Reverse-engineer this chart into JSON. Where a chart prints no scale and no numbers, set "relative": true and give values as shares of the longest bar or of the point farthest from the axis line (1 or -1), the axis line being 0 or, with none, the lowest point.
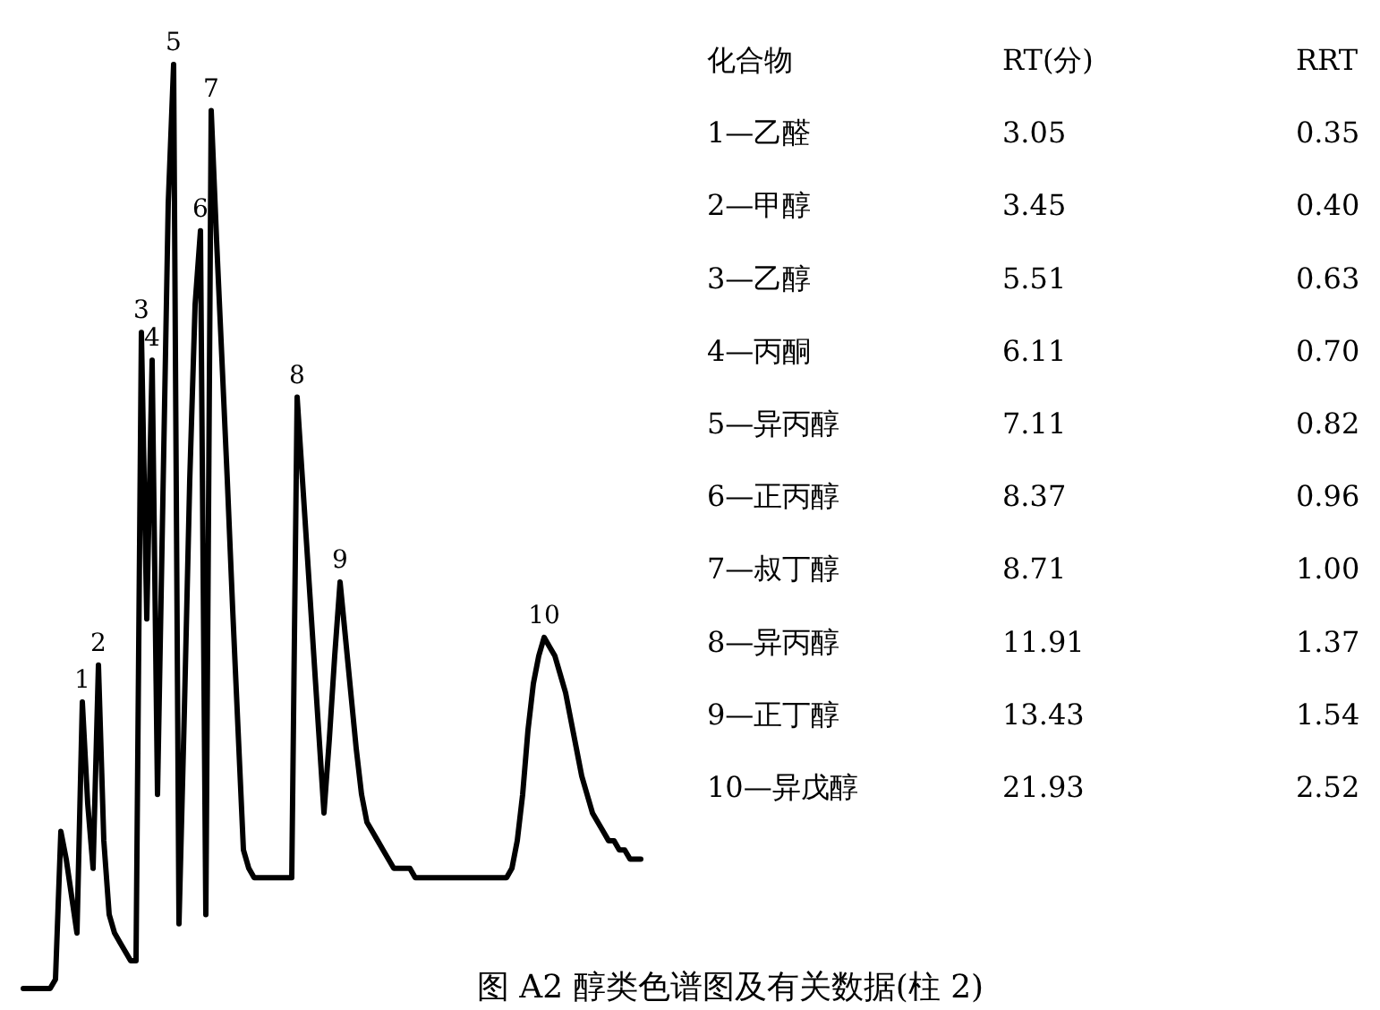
{
  "chart_data": [
    {
      "type": "line",
      "relative": true,
      "categories": [
        null,
        null,
        null,
        null,
        null,
        null,
        null,
        null,
        null,
        null,
        null,
        "1",
        null,
        null,
        "2",
        null,
        null,
        null,
        null,
        null,
        null,
        null,
        "3",
        null,
        "4",
        null,
        null,
        null,
        "5",
        null,
        null,
        null,
        null,
        "6",
        null,
        "7",
        null,
        null,
        null,
        null,
        null,
        null,
        null,
        null,
        null,
        null,
        null,
        null,
        null,
        null,
        null,
        "8",
        null,
        null,
        null,
        null,
        null,
        null,
        null,
        "9",
        null,
        null,
        null,
        null,
        null,
        null,
        null,
        null,
        null,
        null,
        null,
        null,
        null,
        null,
        null,
        null,
        null,
        null,
        null,
        null,
        null,
        null,
        null,
        null,
        null,
        null,
        null,
        null,
        null,
        null,
        null,
        null,
        null,
        null,
        null,
        null,
        null,
        "10",
        null,
        null,
        null,
        null,
        null,
        null,
        null,
        null,
        null,
        null,
        null,
        null,
        null,
        null,
        null,
        null,
        null,
        null
      ],
      "series": [
        {
          "color": "#000000",
          "values": [
            0,
            0,
            0,
            0,
            0,
            0,
            0.01,
            0.17,
            0.14,
            0.1,
            0.06,
            0.31,
            0.2,
            0.13,
            0.35,
            0.16,
            0.08,
            0.06,
            0.05,
            0.04,
            0.03,
            0.03,
            0.71,
            0.4,
            0.68,
            0.21,
            0.53,
            0.85,
            1.0,
            0.07,
            0.3,
            0.55,
            0.74,
            0.82,
            0.08,
            0.95,
            0.81,
            0.68,
            0.55,
            0.41,
            0.28,
            0.15,
            0.13,
            0.12,
            0.12,
            0.12,
            0.12,
            0.12,
            0.12,
            0.12,
            0.12,
            0.64,
            0.55,
            0.46,
            0.37,
            0.28,
            0.19,
            0.27,
            0.36,
            0.44,
            0.38,
            0.32,
            0.26,
            0.21,
            0.18,
            0.17,
            0.16,
            0.15,
            0.14,
            0.13,
            0.13,
            0.13,
            0.13,
            0.12,
            0.12,
            0.12,
            0.12,
            0.12,
            0.12,
            0.12,
            0.12,
            0.12,
            0.12,
            0.12,
            0.12,
            0.12,
            0.12,
            0.12,
            0.12,
            0.12,
            0.12,
            0.13,
            0.16,
            0.21,
            0.28,
            0.33,
            0.36,
            0.38,
            0.37,
            0.36,
            0.34,
            0.32,
            0.29,
            0.26,
            0.23,
            0.21,
            0.19,
            0.18,
            0.17,
            0.16,
            0.16,
            0.15,
            0.15,
            0.14,
            0.14,
            0.14
          ]
        }
      ],
      "annotations": [
        "图 A2 醇类色谱图及有关数据(柱 2)"
      ]
    },
    {
      "type": "heatmap",
      "ylabel": "化合物",
      "categories": [
        "RT(分)",
        "RRT"
      ],
      "y_categories": [
        "1—乙醛",
        "2—甲醇",
        "3—乙醇",
        "4—丙酮",
        "5—异丙醇",
        "6—正丙醇",
        "7—叔丁醇",
        "8—异丙醇",
        "9—正丁醇",
        "10—异戊醇"
      ],
      "cells": [
        [
          3.05,
          0.35
        ],
        [
          3.45,
          0.4
        ],
        [
          5.51,
          0.63
        ],
        [
          6.11,
          0.7
        ],
        [
          7.11,
          0.82
        ],
        [
          8.37,
          0.96
        ],
        [
          8.71,
          1.0
        ],
        [
          11.91,
          1.37
        ],
        [
          13.43,
          1.54
        ],
        [
          21.93,
          2.52
        ]
      ],
      "cell_labels": [
        [
          "3.05",
          "0.35"
        ],
        [
          "3.45",
          "0.40"
        ],
        [
          "5.51",
          "0.63"
        ],
        [
          "6.11",
          "0.70"
        ],
        [
          "7.11",
          "0.82"
        ],
        [
          "8.37",
          "0.96"
        ],
        [
          "8.71",
          "1.00"
        ],
        [
          "11.91",
          "1.37"
        ],
        [
          "13.43",
          "1.54"
        ],
        [
          "21.93",
          "2.52"
        ]
      ]
    }
  ]
}
